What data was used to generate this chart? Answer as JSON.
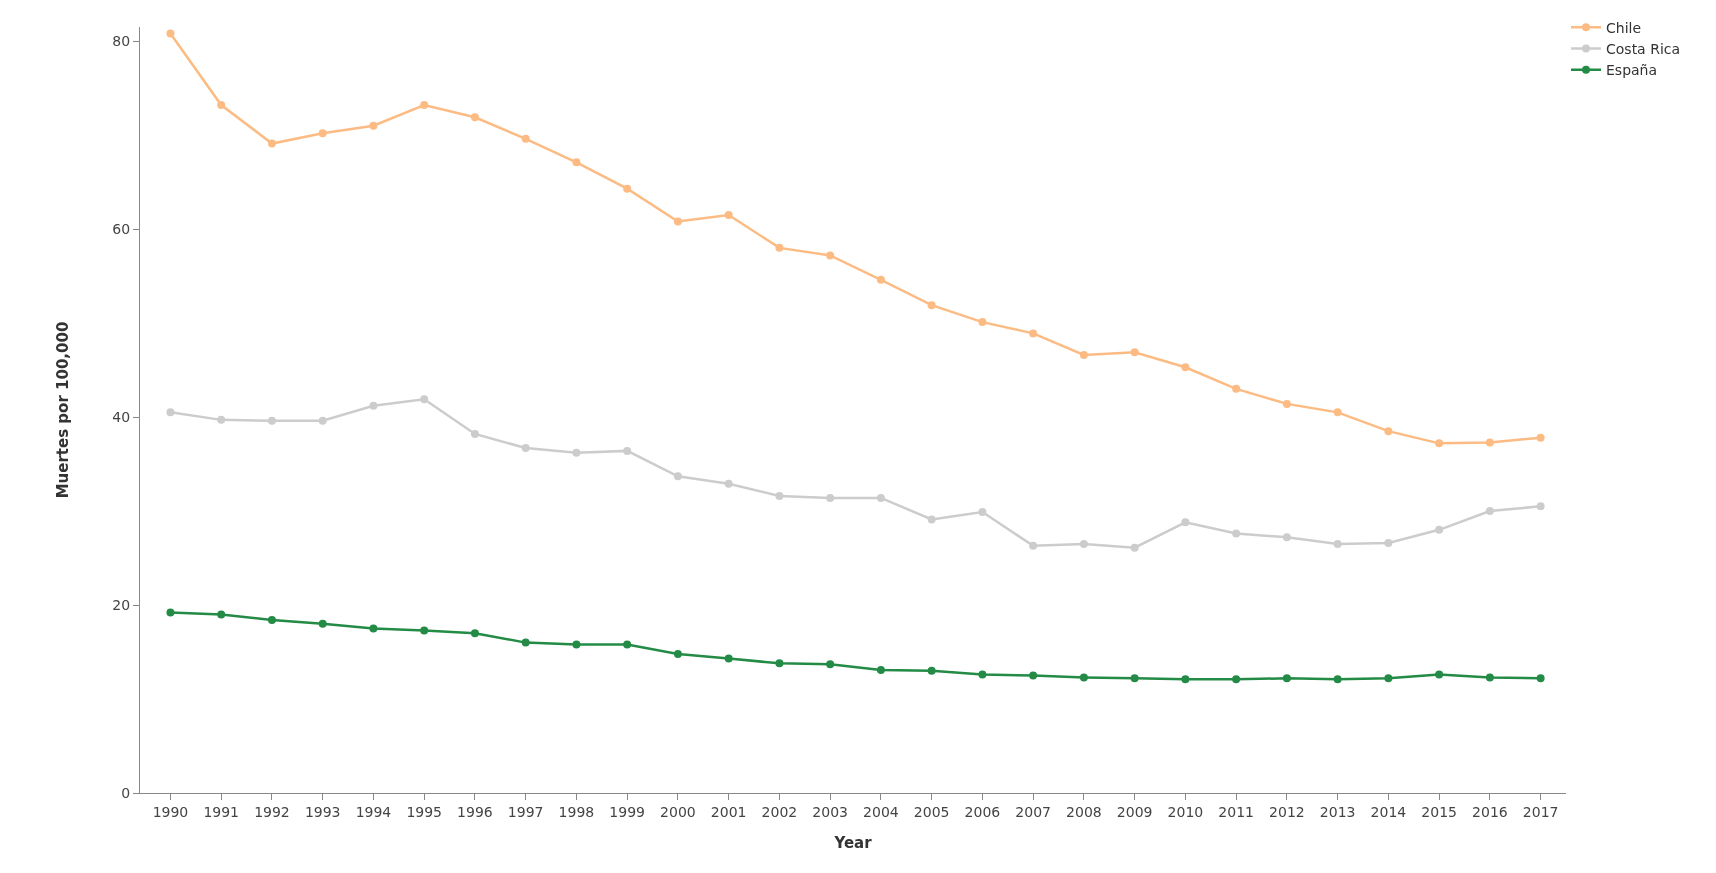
{
  "chart_data": {
    "type": "line",
    "xlabel": "Year",
    "ylabel": "Muertes por 100,000",
    "x": [
      1990,
      1991,
      1992,
      1993,
      1994,
      1995,
      1996,
      1997,
      1998,
      1999,
      2000,
      2001,
      2002,
      2003,
      2004,
      2005,
      2006,
      2007,
      2008,
      2009,
      2010,
      2011,
      2012,
      2013,
      2014,
      2015,
      2016,
      2017
    ],
    "series": [
      {
        "name": "Chile",
        "color": "#fdbb84",
        "values": [
          80.8,
          73.2,
          69.1,
          70.2,
          71.0,
          73.2,
          71.9,
          69.6,
          67.1,
          64.3,
          60.8,
          61.5,
          58.0,
          57.2,
          54.6,
          51.9,
          50.1,
          48.9,
          46.6,
          46.9,
          45.3,
          43.0,
          41.4,
          40.5,
          38.5,
          37.2,
          37.3,
          37.8
        ]
      },
      {
        "name": "Costa Rica",
        "color": "#cccccc",
        "values": [
          40.5,
          39.7,
          39.6,
          39.6,
          41.2,
          41.9,
          38.2,
          36.7,
          36.2,
          36.4,
          33.7,
          32.9,
          31.6,
          31.4,
          31.4,
          29.1,
          29.9,
          26.3,
          26.5,
          26.1,
          28.8,
          27.6,
          27.2,
          26.5,
          26.6,
          28.0,
          30.0,
          30.5
        ]
      },
      {
        "name": "España",
        "color": "#238b45",
        "values": [
          19.2,
          19.0,
          18.4,
          18.0,
          17.5,
          17.3,
          17.0,
          16.0,
          15.8,
          15.8,
          14.8,
          14.3,
          13.8,
          13.7,
          13.1,
          13.0,
          12.6,
          12.5,
          12.3,
          12.2,
          12.1,
          12.1,
          12.2,
          12.1,
          12.2,
          12.6,
          12.3,
          12.2
        ]
      }
    ],
    "xlim": [
      1989.4,
      2017.5
    ],
    "xticks": [
      1990,
      1991,
      1992,
      1993,
      1994,
      1995,
      1996,
      1997,
      1998,
      1999,
      2000,
      2001,
      2002,
      2003,
      2004,
      2005,
      2006,
      2007,
      2008,
      2009,
      2010,
      2011,
      2012,
      2013,
      2014,
      2015,
      2016,
      2017
    ],
    "ylim": [
      0,
      81.5
    ],
    "yticks": [
      0,
      20,
      40,
      60,
      80
    ],
    "grid": false,
    "legend": "top right",
    "marker": "circle",
    "line_style": "solid"
  }
}
